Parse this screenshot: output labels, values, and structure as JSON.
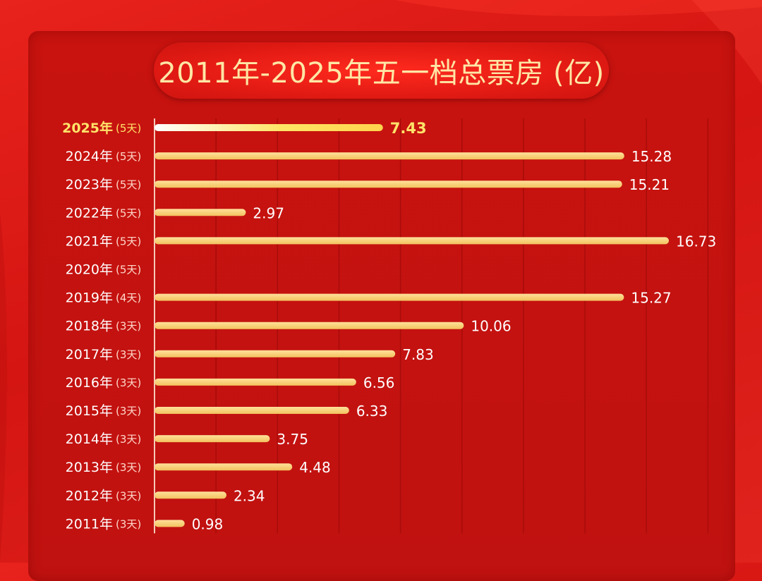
{
  "title": "2011年-2025年五一档总票房 (亿)",
  "colors": {
    "background": "#d41512",
    "panel": "#c4130f",
    "bar": "#fbd67a",
    "bar_highlight_start": "#ffffff",
    "bar_highlight_end": "#ffd34d",
    "highlight_text": "#ffe36a",
    "title_text": "#ffe7a6"
  },
  "chart_data": {
    "type": "bar",
    "orientation": "horizontal",
    "title": "2011年-2025年五一档总票房 (亿)",
    "categories": [
      "2025年",
      "2024年",
      "2023年",
      "2022年",
      "2021年",
      "2020年",
      "2019年",
      "2018年",
      "2017年",
      "2016年",
      "2015年",
      "2014年",
      "2013年",
      "2012年",
      "2011年"
    ],
    "category_notes": [
      "(5天)",
      "(5天)",
      "(5天)",
      "(5天)",
      "(5天)",
      "(5天)",
      "(4天)",
      "(3天)",
      "(3天)",
      "(3天)",
      "(3天)",
      "(3天)",
      "(3天)",
      "(3天)",
      "(3天)"
    ],
    "values": [
      7.43,
      15.28,
      15.21,
      2.97,
      16.73,
      null,
      15.27,
      10.06,
      7.83,
      6.56,
      6.33,
      3.75,
      4.48,
      2.34,
      0.98
    ],
    "value_labels": [
      "7.43",
      "15.28",
      "15.21",
      "2.97",
      "16.73",
      "",
      "15.27",
      "10.06",
      "7.83",
      "6.56",
      "6.33",
      "3.75",
      "4.48",
      "2.34",
      "0.98"
    ],
    "highlight_index": 0,
    "xlim": [
      0,
      20
    ],
    "grid": true,
    "xlabel": "",
    "ylabel": ""
  }
}
